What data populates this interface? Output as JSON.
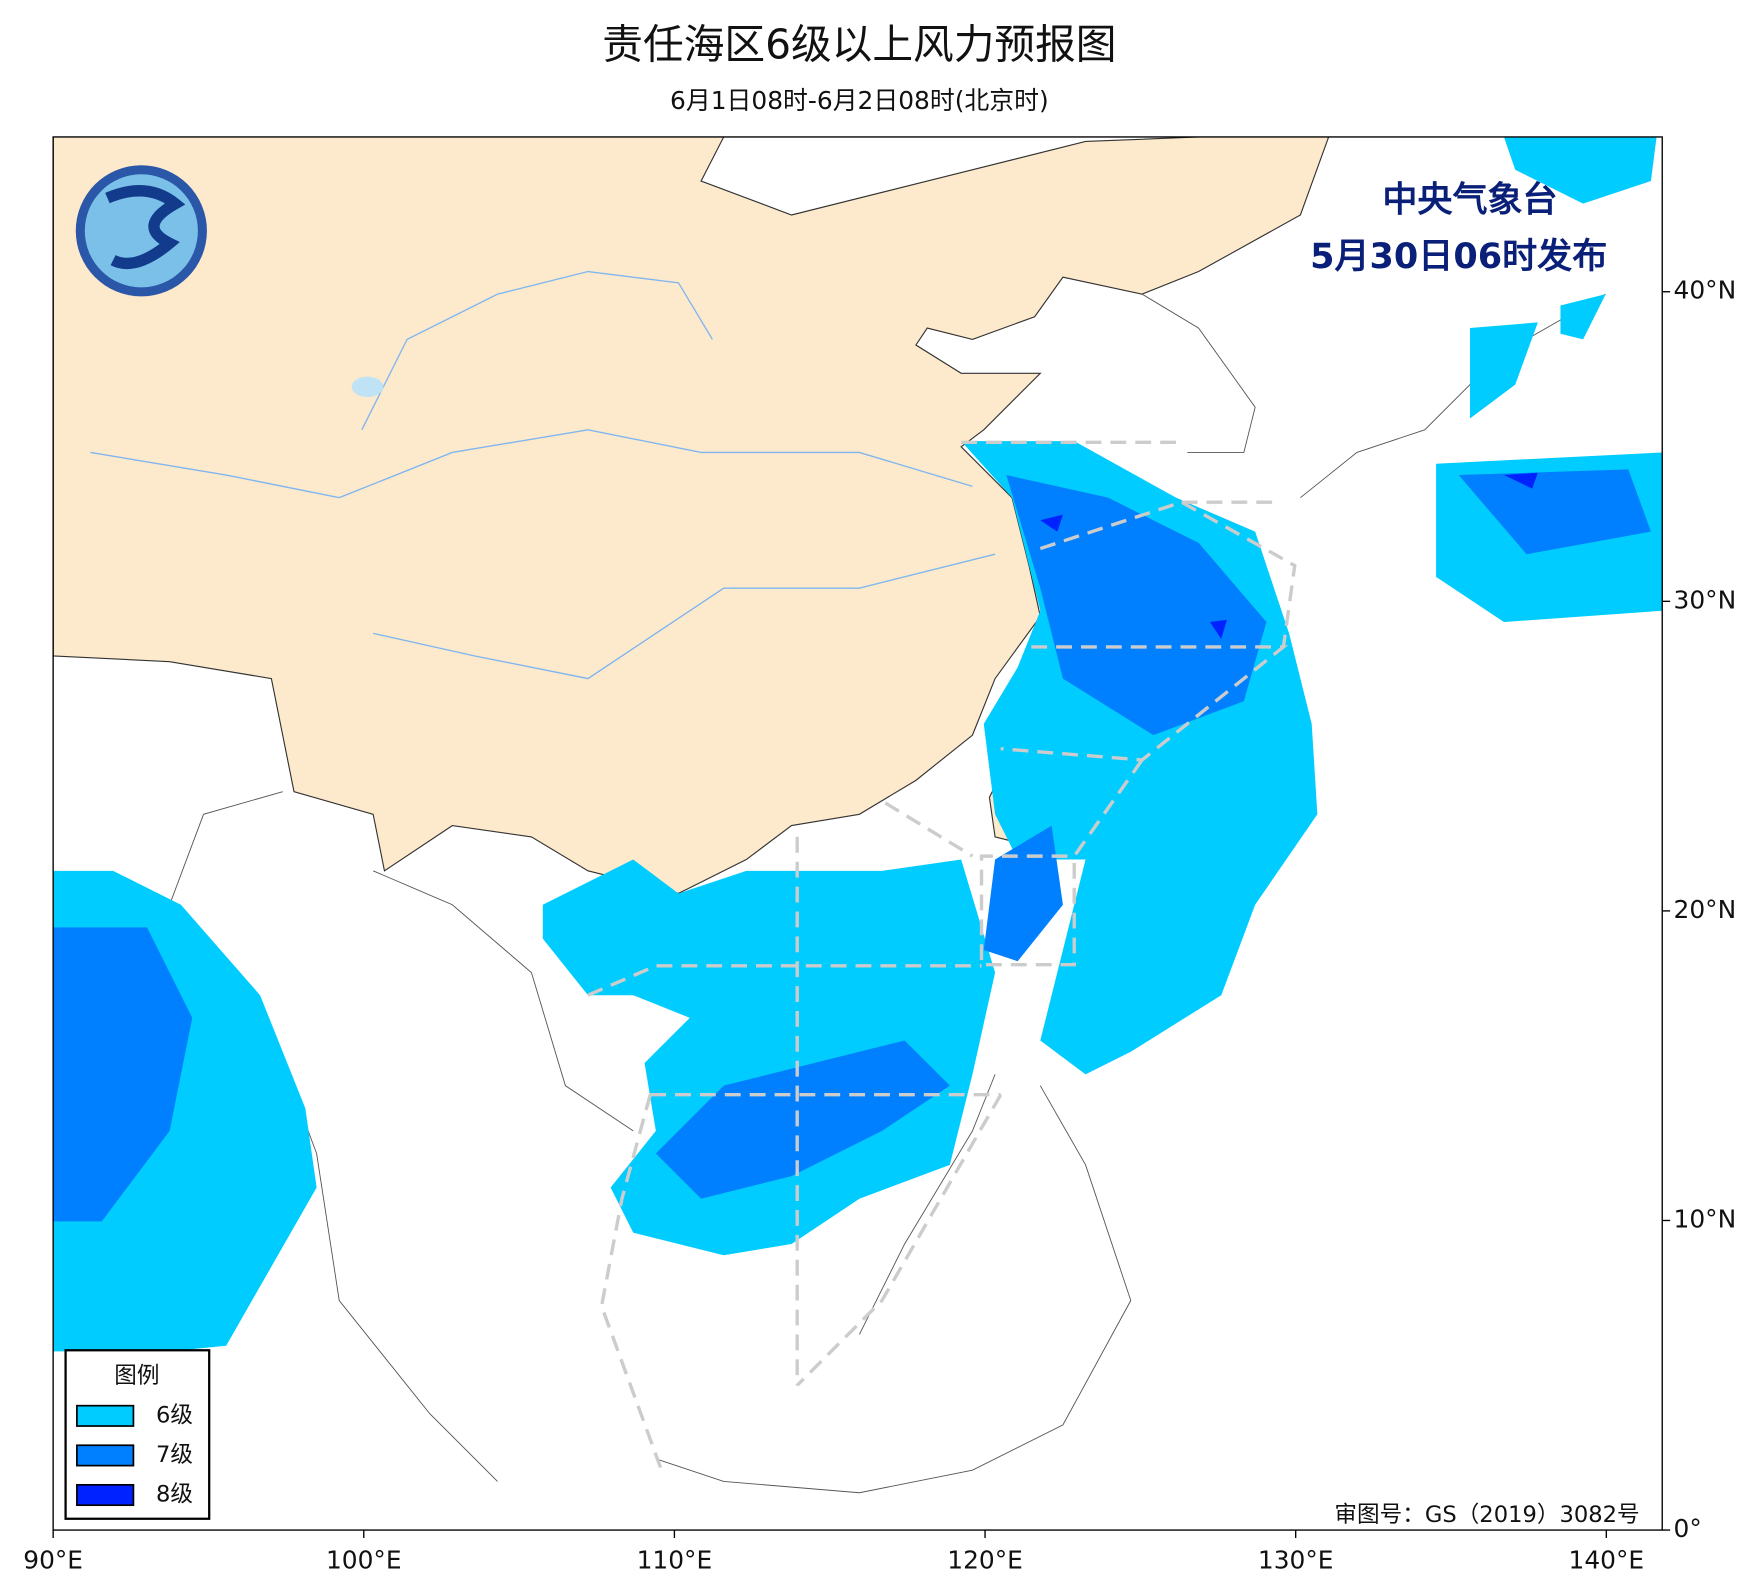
{
  "map": {
    "title": "责任海区6级以上风力预报图",
    "subtitle": "6月1日08时-6月2日08时(北京时)",
    "issuer": [
      "中央气象台",
      "5月30日06时发布"
    ],
    "approval": "审图号：GS（2019）3082号",
    "legend": {
      "title": "图例",
      "items": [
        {
          "label": "6级",
          "color": "#00ccff"
        },
        {
          "label": "7级",
          "color": "#0080ff"
        },
        {
          "label": "8级",
          "color": "#0022ff"
        }
      ]
    },
    "xlim": [
      90,
      141.8
    ],
    "ylim": [
      0,
      45
    ],
    "xticks": [
      {
        "value": 90,
        "label": "90°E"
      },
      {
        "value": 100,
        "label": "100°E"
      },
      {
        "value": 110,
        "label": "110°E"
      },
      {
        "value": 120,
        "label": "120°E"
      },
      {
        "value": 130,
        "label": "130°E"
      },
      {
        "value": 140,
        "label": "140°E"
      }
    ],
    "yticks": [
      {
        "value": 0,
        "label": "0°"
      },
      {
        "value": 10,
        "label": "10°N"
      },
      {
        "value": 20,
        "label": "20°N"
      },
      {
        "value": 30,
        "label": "30°N"
      },
      {
        "value": 40,
        "label": "40°N"
      }
    ]
  }
}
